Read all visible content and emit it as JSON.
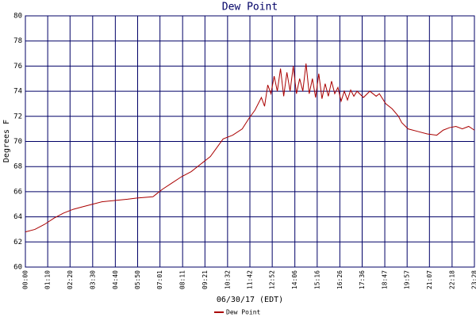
{
  "chart_data": {
    "type": "line",
    "title": "Dew Point",
    "xlabel": "06/30/17 (EDT)",
    "ylabel": "Degrees F",
    "x": [
      0,
      30,
      60,
      90,
      120,
      150,
      180,
      210,
      240,
      280,
      320,
      350,
      400,
      410,
      430,
      460,
      490,
      520,
      550,
      580,
      600,
      620,
      650,
      680,
      700,
      720,
      740,
      750,
      760,
      770,
      780,
      790,
      800,
      810,
      820,
      830,
      840,
      850,
      860,
      870,
      880,
      890,
      900,
      910,
      920,
      930,
      940,
      950,
      960,
      970,
      980,
      990,
      1000,
      1010,
      1020,
      1030,
      1040,
      1060,
      1080,
      1100,
      1110,
      1130,
      1150,
      1170,
      1180,
      1200,
      1230,
      1260,
      1290,
      1310,
      1330,
      1350,
      1370,
      1390,
      1408
    ],
    "series": [
      {
        "name": "Dew Point",
        "color": "#aa0000",
        "values": [
          62.8,
          63.0,
          63.4,
          63.9,
          64.3,
          64.6,
          64.8,
          65.0,
          65.2,
          65.3,
          65.4,
          65.5,
          65.6,
          65.8,
          66.2,
          66.7,
          67.2,
          67.6,
          68.2,
          68.8,
          69.5,
          70.2,
          70.5,
          71.0,
          71.8,
          72.5,
          73.5,
          72.8,
          74.5,
          73.8,
          75.2,
          74.0,
          75.8,
          73.6,
          75.5,
          74.0,
          76.0,
          73.8,
          75.0,
          74.0,
          76.2,
          73.8,
          75.0,
          73.5,
          75.4,
          73.4,
          74.6,
          73.6,
          74.8,
          73.8,
          74.3,
          73.2,
          74.0,
          73.3,
          74.1,
          73.6,
          74.0,
          73.5,
          74.0,
          73.6,
          73.8,
          73.0,
          72.6,
          72.0,
          71.5,
          71.0,
          70.8,
          70.6,
          70.5,
          70.9,
          71.1,
          71.2,
          71.0,
          71.2,
          70.9
        ]
      }
    ],
    "xlim": [
      0,
      1408
    ],
    "xticks": [
      {
        "value": 0,
        "label": "00:00"
      },
      {
        "value": 70,
        "label": "01:10"
      },
      {
        "value": 140,
        "label": "02:20"
      },
      {
        "value": 211,
        "label": "03:30"
      },
      {
        "value": 282,
        "label": "04:40"
      },
      {
        "value": 352,
        "label": "05:50"
      },
      {
        "value": 422,
        "label": "07:01"
      },
      {
        "value": 493,
        "label": "08:11"
      },
      {
        "value": 563,
        "label": "09:21"
      },
      {
        "value": 634,
        "label": "10:32"
      },
      {
        "value": 704,
        "label": "11:42"
      },
      {
        "value": 774,
        "label": "12:52"
      },
      {
        "value": 845,
        "label": "14:06"
      },
      {
        "value": 915,
        "label": "15:16"
      },
      {
        "value": 986,
        "label": "16:26"
      },
      {
        "value": 1056,
        "label": "17:36"
      },
      {
        "value": 1127,
        "label": "18:47"
      },
      {
        "value": 1197,
        "label": "19:57"
      },
      {
        "value": 1267,
        "label": "21:07"
      },
      {
        "value": 1338,
        "label": "22:18"
      },
      {
        "value": 1408,
        "label": "23:28"
      }
    ],
    "ylim": [
      60,
      80
    ],
    "yticks": [
      60,
      62,
      64,
      66,
      68,
      70,
      72,
      74,
      76,
      78,
      80
    ],
    "grid": true
  }
}
